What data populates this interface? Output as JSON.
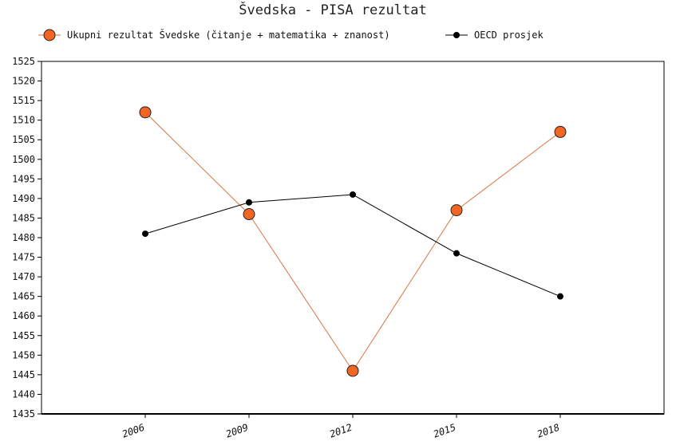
{
  "chart_data": {
    "type": "line",
    "title": "Švedska - PISA rezultat",
    "xlabel": "",
    "ylabel": "",
    "categories": [
      "2006",
      "2009",
      "2012",
      "2015",
      "2018"
    ],
    "ylim": [
      1435,
      1525
    ],
    "ytick_step": 5,
    "grid": false,
    "legend_position": "top",
    "series": [
      {
        "name": "Ukupni rezultat Švedske (čitanje + matematika + znanost)",
        "values": [
          1512,
          1486,
          1446,
          1487,
          1507
        ],
        "color": "#d9733e",
        "marker_fill": "#f26522",
        "marker": "large-circle"
      },
      {
        "name": "OECD prosjek",
        "values": [
          1481,
          1489,
          1491,
          1476,
          1465
        ],
        "color": "#000000",
        "marker_fill": "#000000",
        "marker": "small-circle"
      }
    ]
  }
}
